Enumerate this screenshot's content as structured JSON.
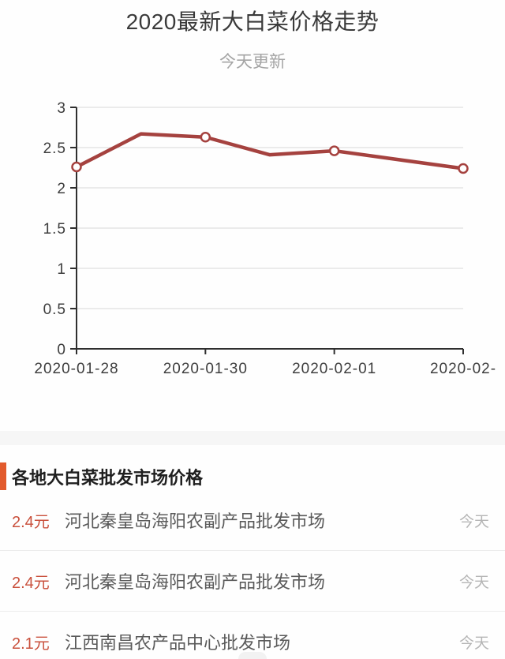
{
  "page": {
    "title": "2020最新大白菜价格走势",
    "subtitle": "今天更新"
  },
  "chart_data": {
    "type": "line",
    "title": "2020最新大白菜价格走势",
    "xlabel": "",
    "ylabel": "",
    "ylim": [
      0,
      3
    ],
    "y_ticks": [
      3,
      2.5,
      2,
      1.5,
      1,
      0.5,
      0
    ],
    "x_ticks": [
      {
        "day": 0,
        "label": "2020-01-28"
      },
      {
        "day": 2,
        "label": "2020-01-30"
      },
      {
        "day": 4,
        "label": "2020-02-01"
      },
      {
        "day": 6,
        "label": "2020-02-"
      }
    ],
    "points": [
      {
        "date": "2020-01-28",
        "day": 0,
        "value": 2.26,
        "marker": true
      },
      {
        "date": "2020-01-29",
        "day": 1,
        "value": 2.67,
        "marker": false
      },
      {
        "date": "2020-01-30",
        "day": 2,
        "value": 2.63,
        "marker": true
      },
      {
        "date": "2020-01-31",
        "day": 3,
        "value": 2.41,
        "marker": false
      },
      {
        "date": "2020-02-01",
        "day": 4,
        "value": 2.46,
        "marker": true
      },
      {
        "date": "2020-02-03",
        "day": 6,
        "value": 2.24,
        "marker": true
      }
    ],
    "grid": true,
    "legend": "none",
    "line_color": "#a5423f",
    "marker_fill": "#ffffff",
    "axis_color": "#2f2f2f",
    "grid_color": "#d8d8d8"
  },
  "price_list": {
    "header": "各地大白菜批发市场价格",
    "rows": [
      {
        "price": "2.4元",
        "market": "河北秦皇岛海阳农副产品批发市场",
        "time": "今天"
      },
      {
        "price": "2.4元",
        "market": "河北秦皇岛海阳农副产品批发市场",
        "time": "今天"
      },
      {
        "price": "2.1元",
        "market": "江西南昌农产品中心批发市场",
        "time": "今天"
      }
    ]
  },
  "colors": {
    "accent_orange": "#e25a2c",
    "price_red": "#c9503c"
  }
}
